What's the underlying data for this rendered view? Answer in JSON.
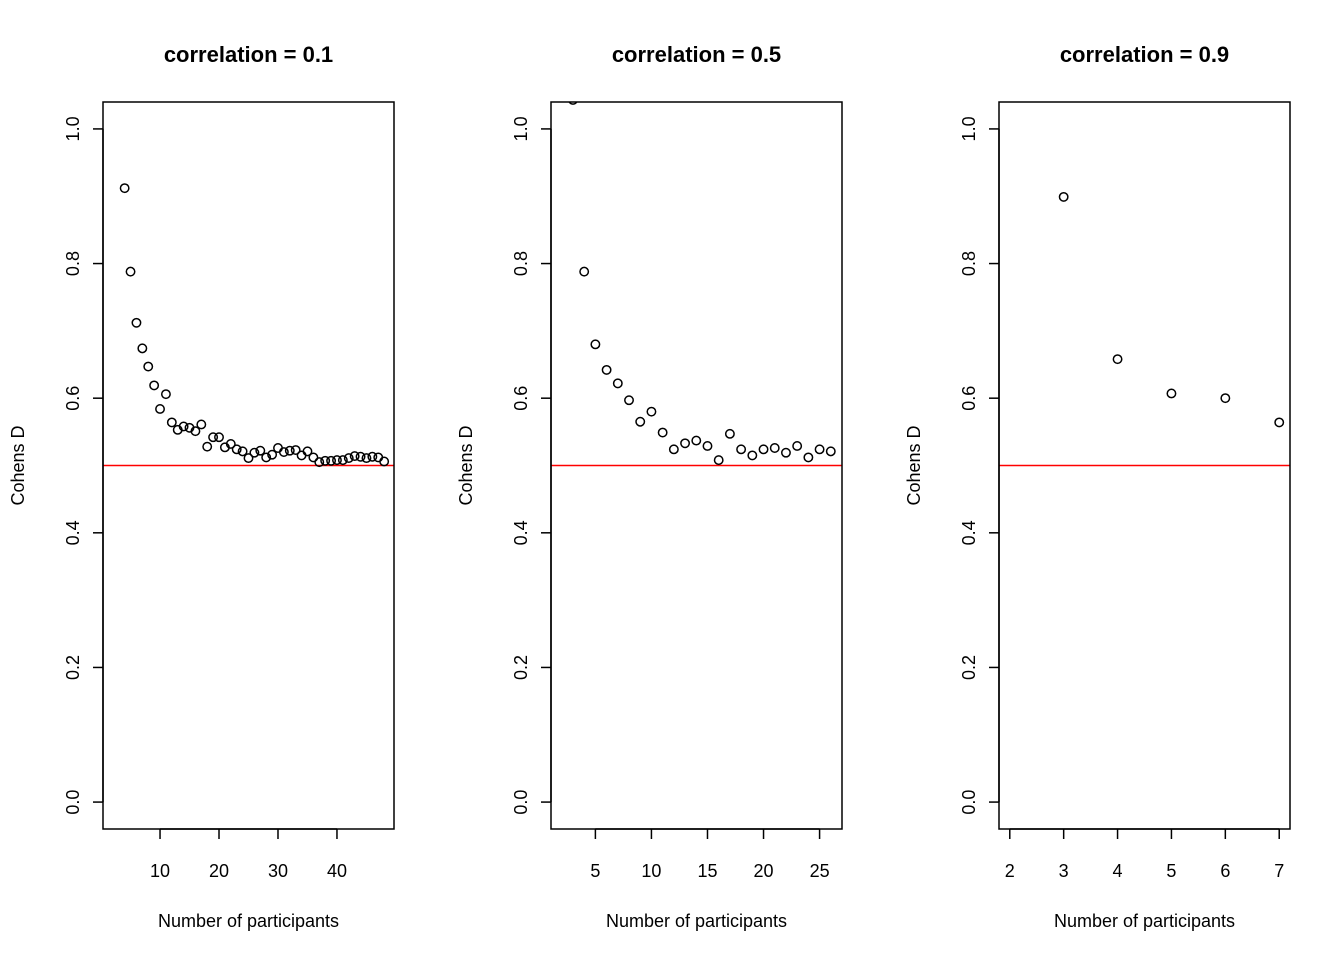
{
  "chart_data": [
    {
      "type": "scatter",
      "title": "correlation = 0.1",
      "xlabel": "Number of participants",
      "ylabel": "Cohens D",
      "xlim": [
        0.33,
        49.67
      ],
      "ylim": [
        -0.04,
        1.04
      ],
      "xticks": [
        10,
        20,
        30,
        40
      ],
      "yticks": [
        0.0,
        0.2,
        0.4,
        0.6,
        0.8,
        1.0
      ],
      "reference_line": {
        "y": 0.5,
        "color": "#ff0000"
      },
      "marker_color": "#000000",
      "grid": false,
      "x": [
        4,
        5,
        6,
        7,
        8,
        9,
        10,
        11,
        12,
        13,
        14,
        15,
        16,
        17,
        18,
        19,
        20,
        21,
        22,
        23,
        24,
        25,
        26,
        27,
        28,
        29,
        30,
        31,
        32,
        33,
        34,
        35,
        36,
        37,
        38,
        39,
        40,
        41,
        42,
        43,
        44,
        45,
        46,
        47,
        48
      ],
      "y": [
        0.912,
        0.788,
        0.712,
        0.674,
        0.647,
        0.619,
        0.584,
        0.606,
        0.564,
        0.553,
        0.558,
        0.556,
        0.551,
        0.561,
        0.528,
        0.542,
        0.542,
        0.527,
        0.532,
        0.524,
        0.521,
        0.511,
        0.519,
        0.522,
        0.512,
        0.516,
        0.526,
        0.52,
        0.522,
        0.523,
        0.515,
        0.521,
        0.512,
        0.505,
        0.507,
        0.507,
        0.508,
        0.508,
        0.511,
        0.514,
        0.513,
        0.511,
        0.513,
        0.512,
        0.506
      ]
    },
    {
      "type": "scatter",
      "title": "correlation = 0.5",
      "xlabel": "Number of participants",
      "ylabel": "Cohens D",
      "xlim": [
        1.04,
        27.0
      ],
      "ylim": [
        -0.04,
        1.04
      ],
      "xticks": [
        5,
        10,
        15,
        20,
        25
      ],
      "yticks": [
        0.0,
        0.2,
        0.4,
        0.6,
        0.8,
        1.0
      ],
      "reference_line": {
        "y": 0.5,
        "color": "#ff0000"
      },
      "marker_color": "#000000",
      "grid": false,
      "x": [
        3,
        4,
        5,
        6,
        7,
        8,
        9,
        10,
        11,
        12,
        13,
        14,
        15,
        16,
        17,
        18,
        19,
        20,
        21,
        22,
        23,
        24,
        25,
        26
      ],
      "y": [
        1.043,
        0.788,
        0.68,
        0.642,
        0.622,
        0.597,
        0.565,
        0.58,
        0.549,
        0.524,
        0.533,
        0.537,
        0.529,
        0.508,
        0.547,
        0.524,
        0.515,
        0.524,
        0.526,
        0.519,
        0.529,
        0.512,
        0.524,
        0.521
      ]
    },
    {
      "type": "scatter",
      "title": "correlation = 0.9",
      "xlabel": "Number of participants",
      "ylabel": "Cohens D",
      "xlim": [
        1.8,
        7.2
      ],
      "ylim": [
        -0.04,
        1.04
      ],
      "xticks": [
        2,
        3,
        4,
        5,
        6,
        7
      ],
      "yticks": [
        0.0,
        0.2,
        0.4,
        0.6,
        0.8,
        1.0
      ],
      "reference_line": {
        "y": 0.5,
        "color": "#ff0000"
      },
      "marker_color": "#000000",
      "grid": false,
      "x": [
        3,
        4,
        5,
        6,
        7
      ],
      "y": [
        0.899,
        0.658,
        0.607,
        0.6,
        0.564
      ]
    }
  ]
}
